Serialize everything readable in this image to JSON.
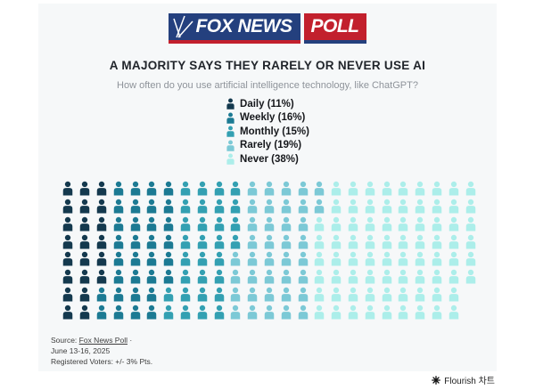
{
  "logo": {
    "brand": "FOX NEWS",
    "badge": "POLL"
  },
  "header": {
    "title": "A MAJORITY SAYS THEY RARELY OR NEVER USE AI",
    "subtitle": "How often do you use artificial intelligence technology, like ChatGPT?"
  },
  "chart_data": {
    "type": "pictogram",
    "categories": [
      "Daily",
      "Weekly",
      "Monthly",
      "Rarely",
      "Never"
    ],
    "values": [
      11,
      16,
      15,
      19,
      38
    ],
    "unit": "percent",
    "colors": [
      "#14394e",
      "#1c7a93",
      "#33a0b2",
      "#7cc9d6",
      "#aceeea"
    ],
    "legend_labels": [
      "Daily (11%)",
      "Weekly (16%)",
      "Monthly (15%)",
      "Rarely (19%)",
      "Never (38%)"
    ],
    "icons_per_percent": 2,
    "grid_rows": 8,
    "grid_columns": 25,
    "fill_order": "column-major",
    "legend_position": "top-center"
  },
  "footer": {
    "source_prefix": "Source: ",
    "source_link": "Fox News Poll",
    "source_suffix": " ·",
    "date": "June 13-16, 2025",
    "note": "Registered Voters: +/- 3% Pts."
  },
  "attribution": {
    "label": "Flourish 차트"
  }
}
